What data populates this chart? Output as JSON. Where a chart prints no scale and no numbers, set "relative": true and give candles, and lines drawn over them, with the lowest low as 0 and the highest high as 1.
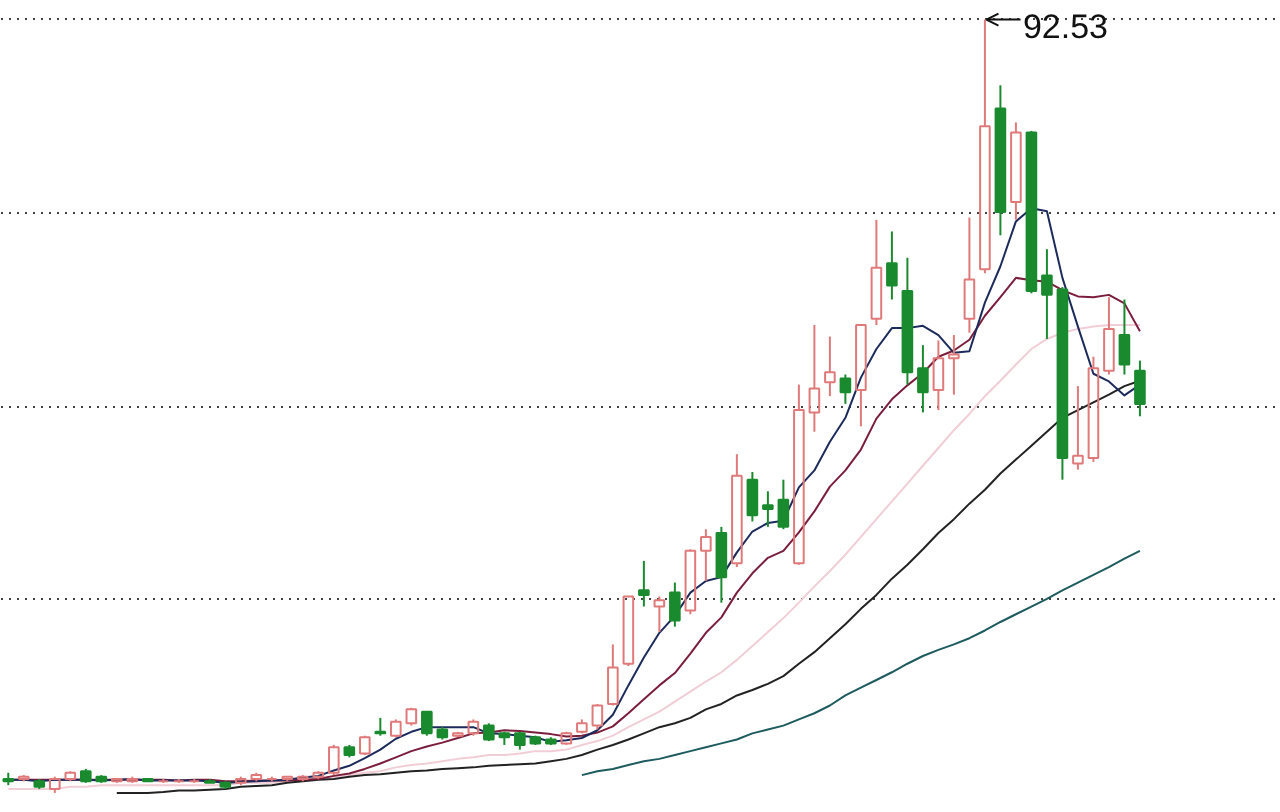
{
  "chart_data": {
    "type": "candlestick",
    "relative": true,
    "tick_labels": false,
    "grid": "y",
    "categories": [
      null,
      null,
      null,
      null,
      null,
      null,
      null,
      null,
      null,
      null,
      null,
      null,
      null,
      null,
      null,
      null,
      null,
      null,
      null,
      null,
      null,
      null,
      null,
      null,
      null,
      null,
      null,
      null,
      null,
      null,
      null,
      null,
      null,
      null,
      null,
      null,
      null,
      null,
      null,
      null,
      null,
      null,
      null,
      null,
      null,
      null,
      null,
      null,
      null,
      null,
      null,
      null,
      null,
      null,
      null,
      null,
      null,
      null,
      null,
      null,
      null,
      null,
      null,
      null,
      null,
      null,
      null,
      null,
      null,
      null,
      null,
      null,
      null,
      null
    ],
    "ohlc": [
      [
        0.018,
        0.026,
        0.01,
        0.015
      ],
      [
        0.018,
        0.023,
        0.015,
        0.021
      ],
      [
        0.015,
        0.018,
        0.005,
        0.008
      ],
      [
        0.005,
        0.021,
        0,
        0.018
      ],
      [
        0.018,
        0.028,
        0.015,
        0.026
      ],
      [
        0.028,
        0.031,
        0.013,
        0.015
      ],
      [
        0.021,
        0.023,
        0.013,
        0.015
      ],
      [
        0.015,
        0.018,
        0.013,
        0.018
      ],
      [
        0.015,
        0.021,
        0.013,
        0.018
      ],
      [
        0.018,
        0.018,
        0.015,
        0.015
      ],
      [
        0.015,
        0.018,
        0.013,
        0.015
      ],
      [
        0.015,
        0.018,
        0.013,
        0.015
      ],
      [
        0.015,
        0.018,
        0.013,
        0.015
      ],
      [
        0.015,
        0.018,
        0.013,
        0.013
      ],
      [
        0.013,
        0.015,
        0.005,
        0.008
      ],
      [
        0.013,
        0.021,
        0.01,
        0.018
      ],
      [
        0.018,
        0.026,
        0.015,
        0.023
      ],
      [
        0.018,
        0.021,
        0.015,
        0.018
      ],
      [
        0.018,
        0.021,
        0.015,
        0.021
      ],
      [
        0.018,
        0.023,
        0.015,
        0.021
      ],
      [
        0.021,
        0.028,
        0.018,
        0.026
      ],
      [
        0.026,
        0.062,
        0.023,
        0.059
      ],
      [
        0.059,
        0.062,
        0.046,
        0.049
      ],
      [
        0.051,
        0.074,
        0.049,
        0.072
      ],
      [
        0.079,
        0.097,
        0.074,
        0.077
      ],
      [
        0.074,
        0.095,
        0.072,
        0.092
      ],
      [
        0.09,
        0.11,
        0.087,
        0.108
      ],
      [
        0.105,
        0.105,
        0.074,
        0.077
      ],
      [
        0.082,
        0.085,
        0.069,
        0.072
      ],
      [
        0.074,
        0.079,
        0.072,
        0.077
      ],
      [
        0.077,
        0.095,
        0.074,
        0.092
      ],
      [
        0.087,
        0.09,
        0.067,
        0.069
      ],
      [
        0.077,
        0.079,
        0.062,
        0.072
      ],
      [
        0.077,
        0.079,
        0.056,
        0.062
      ],
      [
        0.072,
        0.074,
        0.062,
        0.064
      ],
      [
        0.069,
        0.072,
        0.062,
        0.064
      ],
      [
        0.064,
        0.079,
        0.062,
        0.077
      ],
      [
        0.079,
        0.095,
        0.077,
        0.09
      ],
      [
        0.087,
        0.115,
        0.082,
        0.113
      ],
      [
        0.115,
        0.192,
        0.113,
        0.162
      ],
      [
        0.167,
        0.254,
        0.164,
        0.254
      ],
      [
        0.262,
        0.3,
        0.241,
        0.256
      ],
      [
        0.241,
        0.254,
        0.208,
        0.249
      ],
      [
        0.259,
        0.272,
        0.215,
        0.223
      ],
      [
        0.236,
        0.315,
        0.231,
        0.313
      ],
      [
        0.313,
        0.341,
        0.274,
        0.331
      ],
      [
        0.336,
        0.344,
        0.246,
        0.279
      ],
      [
        0.297,
        0.438,
        0.292,
        0.41
      ],
      [
        0.405,
        0.415,
        0.351,
        0.359
      ],
      [
        0.372,
        0.39,
        0.344,
        0.367
      ],
      [
        0.379,
        0.405,
        0.341,
        0.344
      ],
      [
        0.297,
        0.528,
        0.295,
        0.495
      ],
      [
        0.492,
        0.605,
        0.467,
        0.523
      ],
      [
        0.531,
        0.59,
        0.513,
        0.544
      ],
      [
        0.536,
        0.541,
        0.503,
        0.518
      ],
      [
        0.521,
        0.605,
        0.474,
        0.605
      ],
      [
        0.613,
        0.741,
        0.605,
        0.679
      ],
      [
        0.685,
        0.726,
        0.638,
        0.656
      ],
      [
        0.649,
        0.692,
        0.528,
        0.544
      ],
      [
        0.549,
        0.579,
        0.492,
        0.518
      ],
      [
        0.521,
        0.585,
        0.495,
        0.562
      ],
      [
        0.562,
        0.592,
        0.515,
        0.567
      ],
      [
        0.613,
        0.744,
        0.595,
        0.664
      ],
      [
        0.677,
        1,
        0.672,
        0.862
      ],
      [
        0.885,
        0.915,
        0.721,
        0.751
      ],
      [
        0.764,
        0.867,
        0.741,
        0.854
      ],
      [
        0.854,
        0.856,
        0.646,
        0.649
      ],
      [
        0.669,
        0.703,
        0.587,
        0.644
      ],
      [
        0.651,
        0.654,
        0.405,
        0.433
      ],
      [
        0.426,
        0.526,
        0.418,
        0.436
      ],
      [
        0.433,
        0.564,
        0.428,
        0.549
      ],
      [
        0.546,
        0.641,
        0.541,
        0.6
      ],
      [
        0.592,
        0.638,
        0.541,
        0.554
      ],
      [
        0.546,
        0.559,
        0.487,
        0.503
      ]
    ],
    "colors": [
      "#1a8a2e",
      "#e07a7a",
      "#1a8a2e",
      "#e07a7a",
      "#e07a7a",
      "#1a8a2e",
      "#1a8a2e",
      "#e07a7a",
      "#e07a7a",
      "#1a8a2e",
      "#e07a7a",
      "#e07a7a",
      "#e07a7a",
      "#1a8a2e",
      "#1a8a2e",
      "#e07a7a",
      "#e07a7a",
      "#e07a7a",
      "#e07a7a",
      "#e07a7a",
      "#e07a7a",
      "#e07a7a",
      "#1a8a2e",
      "#e07a7a",
      "#1a8a2e",
      "#e07a7a",
      "#e07a7a",
      "#1a8a2e",
      "#1a8a2e",
      "#e07a7a",
      "#e07a7a",
      "#1a8a2e",
      "#1a8a2e",
      "#1a8a2e",
      "#1a8a2e",
      "#1a8a2e",
      "#e07a7a",
      "#e07a7a",
      "#e07a7a",
      "#e07a7a",
      "#e07a7a",
      "#1a8a2e",
      "#e07a7a",
      "#1a8a2e",
      "#e07a7a",
      "#e07a7a",
      "#1a8a2e",
      "#e07a7a",
      "#1a8a2e",
      "#1a8a2e",
      "#1a8a2e",
      "#e07a7a",
      "#e07a7a",
      "#e07a7a",
      "#1a8a2e",
      "#e07a7a",
      "#e07a7a",
      "#1a8a2e",
      "#1a8a2e",
      "#1a8a2e",
      "#e07a7a",
      "#e07a7a",
      "#e07a7a",
      "#e07a7a",
      "#1a8a2e",
      "#e07a7a",
      "#1a8a2e",
      "#1a8a2e",
      "#1a8a2e",
      "#e07a7a",
      "#e07a7a",
      "#e07a7a",
      "#1a8a2e",
      "#1a8a2e"
    ],
    "series": [
      {
        "type": "line",
        "color": "#f1cdd6",
        "values": [
          0.005,
          0.005,
          0.005,
          0.005,
          0.008,
          0.008,
          0.01,
          0.01,
          0.01,
          0.01,
          0.01,
          0.01,
          0.01,
          0.01,
          0.01,
          0.013,
          0.013,
          0.013,
          0.015,
          0.015,
          0.018,
          0.021,
          0.023,
          0.026,
          0.028,
          0.033,
          0.036,
          0.038,
          0.041,
          0.044,
          0.046,
          0.049,
          0.049,
          0.051,
          0.054,
          0.054,
          0.056,
          0.062,
          0.067,
          0.074,
          0.085,
          0.095,
          0.105,
          0.118,
          0.131,
          0.144,
          0.156,
          0.172,
          0.19,
          0.208,
          0.226,
          0.246,
          0.267,
          0.287,
          0.308,
          0.331,
          0.354,
          0.377,
          0.4,
          0.423,
          0.446,
          0.469,
          0.49,
          0.513,
          0.533,
          0.554,
          0.574,
          0.587,
          0.595,
          0.6,
          0.603,
          0.605,
          0.605,
          0.605
        ]
      },
      {
        "type": "line",
        "color": "#1e5b5e",
        "values": [
          null,
          null,
          null,
          null,
          null,
          null,
          null,
          null,
          null,
          null,
          null,
          null,
          null,
          null,
          null,
          null,
          null,
          null,
          null,
          null,
          null,
          null,
          null,
          null,
          null,
          null,
          null,
          null,
          null,
          null,
          null,
          null,
          null,
          null,
          null,
          null,
          null,
          0.023,
          0.028,
          0.031,
          0.036,
          0.041,
          0.044,
          0.049,
          0.054,
          0.059,
          0.064,
          0.069,
          0.077,
          0.082,
          0.087,
          0.095,
          0.103,
          0.113,
          0.126,
          0.136,
          0.146,
          0.156,
          0.167,
          0.177,
          0.185,
          0.192,
          0.2,
          0.21,
          0.221,
          0.231,
          0.241,
          0.251,
          0.262,
          0.272,
          0.282,
          0.292,
          0.303,
          0.313
        ]
      },
      {
        "type": "line",
        "color": "#222222",
        "values": [
          null,
          null,
          null,
          null,
          null,
          null,
          null,
          0,
          0,
          0,
          0.001,
          0.003,
          0.003,
          0.004,
          0.005,
          0.008,
          0.009,
          0.01,
          0.013,
          0.015,
          0.017,
          0.018,
          0.021,
          0.023,
          0.024,
          0.026,
          0.028,
          0.029,
          0.031,
          0.032,
          0.033,
          0.035,
          0.036,
          0.037,
          0.038,
          0.041,
          0.044,
          0.049,
          0.056,
          0.062,
          0.069,
          0.077,
          0.085,
          0.09,
          0.097,
          0.108,
          0.115,
          0.126,
          0.133,
          0.141,
          0.151,
          0.167,
          0.182,
          0.2,
          0.218,
          0.238,
          0.256,
          0.277,
          0.295,
          0.315,
          0.336,
          0.354,
          0.374,
          0.392,
          0.413,
          0.431,
          0.449,
          0.467,
          0.485,
          0.495,
          0.505,
          0.515,
          0.526,
          0.533
        ]
      },
      {
        "type": "line",
        "color": "#7b1e3c",
        "values": [
          0.017,
          0.017,
          0.017,
          0.017,
          0.017,
          0.017,
          0.017,
          0.017,
          0.017,
          0.017,
          0.017,
          0.016,
          0.017,
          0.017,
          0.015,
          0.015,
          0.016,
          0.016,
          0.016,
          0.017,
          0.018,
          0.022,
          0.025,
          0.031,
          0.038,
          0.046,
          0.054,
          0.06,
          0.065,
          0.071,
          0.077,
          0.078,
          0.081,
          0.08,
          0.078,
          0.076,
          0.073,
          0.074,
          0.078,
          0.086,
          0.103,
          0.121,
          0.139,
          0.155,
          0.18,
          0.207,
          0.227,
          0.259,
          0.284,
          0.304,
          0.313,
          0.337,
          0.364,
          0.396,
          0.417,
          0.444,
          0.484,
          0.509,
          0.527,
          0.543,
          0.564,
          0.572,
          0.586,
          0.617,
          0.641,
          0.666,
          0.663,
          0.661,
          0.65,
          0.642,
          0.641,
          0.644,
          0.633,
          0.597
        ]
      },
      {
        "type": "line",
        "color": "#1d2b5c",
        "values": [
          0.017,
          0.017,
          0.015,
          0.017,
          0.017,
          0.017,
          0.016,
          0.017,
          0.018,
          0.016,
          0.016,
          0.016,
          0.016,
          0.015,
          0.013,
          0.014,
          0.015,
          0.016,
          0.017,
          0.02,
          0.022,
          0.029,
          0.035,
          0.045,
          0.056,
          0.07,
          0.079,
          0.085,
          0.085,
          0.085,
          0.085,
          0.077,
          0.076,
          0.074,
          0.072,
          0.066,
          0.068,
          0.071,
          0.081,
          0.101,
          0.139,
          0.175,
          0.207,
          0.229,
          0.259,
          0.274,
          0.279,
          0.311,
          0.338,
          0.349,
          0.352,
          0.395,
          0.417,
          0.454,
          0.485,
          0.537,
          0.574,
          0.601,
          0.601,
          0.604,
          0.592,
          0.569,
          0.571,
          0.634,
          0.681,
          0.739,
          0.756,
          0.752,
          0.666,
          0.603,
          0.542,
          0.532,
          0.514,
          0.528
        ]
      }
    ],
    "annotations": [
      "92.53"
    ]
  }
}
